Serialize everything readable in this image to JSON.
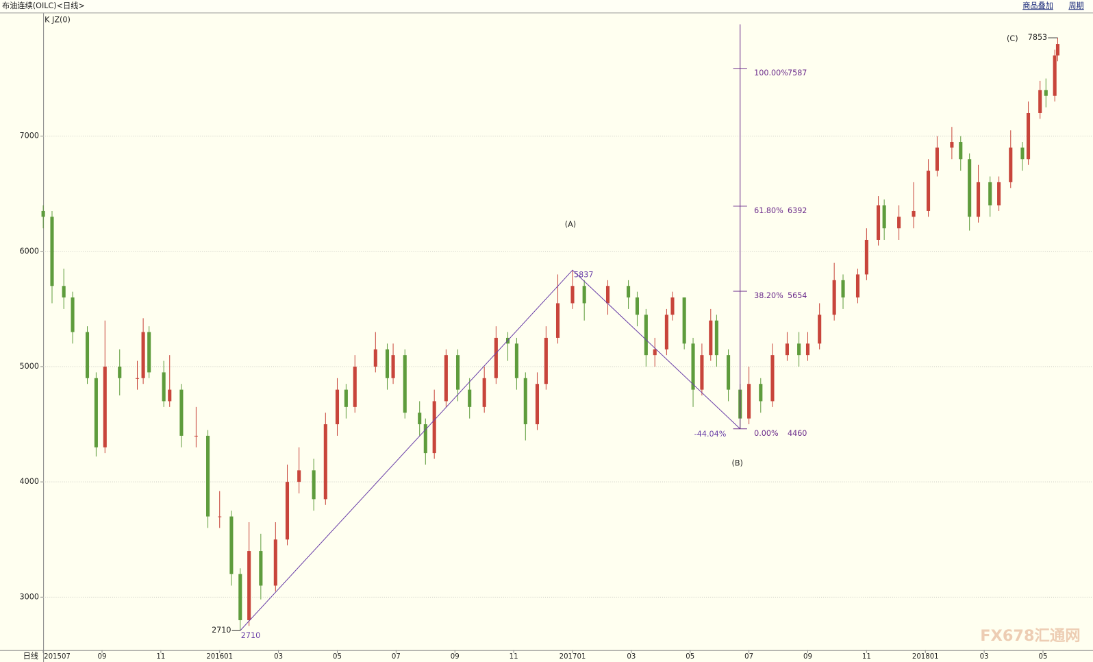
{
  "header": {
    "title": "布油连续(OILC)<日线>",
    "links": [
      "商品叠加",
      "周期"
    ],
    "indicator": "K JZ(0)",
    "period": "日线",
    "watermark": "FX678汇通网"
  },
  "chart_data": {
    "type": "candlestick",
    "up_color": "#c8453b",
    "down_color": "#5e9c3c",
    "grid": true,
    "xlim": [
      0,
      35.7
    ],
    "ylim": [
      2540,
      8060
    ],
    "yticks": [
      3000,
      4000,
      5000,
      6000,
      7000
    ],
    "xticks": [
      {
        "value": 0,
        "label": "201507"
      },
      {
        "value": 2,
        "label": "09"
      },
      {
        "value": 4,
        "label": "11"
      },
      {
        "value": 6,
        "label": "201601"
      },
      {
        "value": 8,
        "label": "03"
      },
      {
        "value": 10,
        "label": "05"
      },
      {
        "value": 12,
        "label": "07"
      },
      {
        "value": 14,
        "label": "09"
      },
      {
        "value": 16,
        "label": "11"
      },
      {
        "value": 18,
        "label": "201701"
      },
      {
        "value": 20,
        "label": "03"
      },
      {
        "value": 22,
        "label": "05"
      },
      {
        "value": 24,
        "label": "07"
      },
      {
        "value": 26,
        "label": "09"
      },
      {
        "value": 28,
        "label": "11"
      },
      {
        "value": 30,
        "label": "201801"
      },
      {
        "value": 32,
        "label": "03"
      },
      {
        "value": 34,
        "label": "05"
      }
    ],
    "x": [
      0.0,
      0.3,
      0.7,
      1.0,
      1.5,
      1.8,
      2.1,
      2.6,
      3.2,
      3.4,
      3.6,
      4.1,
      4.3,
      4.7,
      5.2,
      5.6,
      6.0,
      6.4,
      6.7,
      7.0,
      7.4,
      7.9,
      8.3,
      8.7,
      9.2,
      9.6,
      10.0,
      10.3,
      10.6,
      11.3,
      11.7,
      11.9,
      12.3,
      12.8,
      13.0,
      13.3,
      13.7,
      14.1,
      14.5,
      15.0,
      15.4,
      15.8,
      16.1,
      16.4,
      16.8,
      17.1,
      17.5,
      18.0,
      18.4,
      19.2,
      19.9,
      20.2,
      20.5,
      20.8,
      21.2,
      21.4,
      21.8,
      22.1,
      22.4,
      22.7,
      22.9,
      23.3,
      23.7,
      24.0,
      24.4,
      24.8,
      25.3,
      25.7,
      26.0,
      26.4,
      26.9,
      27.2,
      27.7,
      28.0,
      28.4,
      28.6,
      29.1,
      29.6,
      30.1,
      30.4,
      30.9,
      31.2,
      31.5,
      31.8,
      32.2,
      32.5,
      32.9,
      33.3,
      33.5,
      33.9,
      34.1,
      34.4,
      34.5
    ],
    "open": [
      6350,
      6300,
      5700,
      5600,
      5300,
      4900,
      4300,
      5000,
      4900,
      4900,
      5300,
      4950,
      4700,
      4800,
      4400,
      4400,
      3700,
      3700,
      3200,
      2800,
      3400,
      3100,
      3500,
      4000,
      4100,
      3850,
      4500,
      4800,
      4650,
      5000,
      5150,
      4900,
      5100,
      4600,
      4500,
      4250,
      4700,
      5100,
      4800,
      4650,
      4900,
      5250,
      5200,
      4900,
      4500,
      4850,
      5250,
      5550,
      5700,
      5550,
      5700,
      5600,
      5450,
      5100,
      5150,
      5450,
      5600,
      5200,
      4800,
      5100,
      5400,
      5100,
      4800,
      4550,
      4850,
      4700,
      5100,
      5200,
      5100,
      5200,
      5450,
      5750,
      5600,
      5800,
      6100,
      6400,
      6200,
      6300,
      6350,
      6700,
      6900,
      6950,
      6800,
      6300,
      6600,
      6400,
      6600,
      6900,
      6800,
      7200,
      7400,
      7350,
      7700
    ],
    "high": [
      6400,
      6350,
      5850,
      5650,
      5350,
      4950,
      5400,
      5150,
      5050,
      5420,
      5350,
      5050,
      5100,
      4850,
      4650,
      4450,
      3920,
      3750,
      3250,
      3650,
      3550,
      3650,
      4150,
      4300,
      4200,
      4600,
      4900,
      4850,
      5100,
      5300,
      5200,
      5200,
      5150,
      4700,
      4550,
      4800,
      5150,
      5150,
      4900,
      5000,
      5350,
      5300,
      5250,
      4950,
      4950,
      5350,
      5800,
      5837,
      5750,
      5750,
      5750,
      5650,
      5500,
      5250,
      5500,
      5650,
      5600,
      5250,
      5200,
      5500,
      5450,
      5150,
      4850,
      5000,
      4900,
      5200,
      5300,
      5300,
      5300,
      5550,
      5900,
      5800,
      5850,
      6200,
      6480,
      6450,
      6400,
      6600,
      6800,
      7000,
      7080,
      7000,
      6850,
      6750,
      6650,
      6650,
      7050,
      6950,
      7300,
      7480,
      7500,
      7750,
      7853
    ],
    "low": [
      6200,
      5550,
      5500,
      5200,
      4850,
      4220,
      4250,
      4750,
      4800,
      4850,
      4900,
      4650,
      4650,
      4300,
      4300,
      3600,
      3600,
      3100,
      2710,
      2750,
      2980,
      3050,
      3450,
      3900,
      3750,
      3800,
      4400,
      4550,
      4600,
      4950,
      4800,
      4850,
      4550,
      4400,
      4150,
      4200,
      4650,
      4700,
      4550,
      4600,
      4850,
      5050,
      4800,
      4360,
      4450,
      4800,
      5200,
      5500,
      5400,
      5450,
      5500,
      5350,
      5000,
      5000,
      5100,
      5400,
      5150,
      4650,
      4750,
      5050,
      5000,
      4700,
      4460,
      4500,
      4600,
      4650,
      5050,
      5000,
      5050,
      5150,
      5400,
      5500,
      5550,
      5750,
      6050,
      6100,
      6100,
      6200,
      6300,
      6650,
      6800,
      6700,
      6180,
      6250,
      6300,
      6350,
      6550,
      6700,
      6750,
      7150,
      7250,
      7300,
      7650
    ],
    "close": [
      6300,
      5700,
      5600,
      5300,
      4900,
      4300,
      5000,
      4900,
      4900,
      5300,
      4950,
      4700,
      4800,
      4400,
      4400,
      3700,
      3700,
      3200,
      2800,
      3400,
      3100,
      3500,
      4000,
      4100,
      3850,
      4500,
      4800,
      4650,
      5000,
      5150,
      4900,
      5100,
      4600,
      4500,
      4250,
      4700,
      5100,
      4800,
      4650,
      4900,
      5250,
      5200,
      4900,
      4500,
      4850,
      5250,
      5550,
      5700,
      5550,
      5700,
      5600,
      5450,
      5100,
      5150,
      5450,
      5600,
      5200,
      4800,
      5100,
      5400,
      5100,
      4800,
      4550,
      4850,
      4700,
      5100,
      5200,
      5100,
      5200,
      5450,
      5750,
      5600,
      5800,
      6100,
      6400,
      6200,
      6300,
      6350,
      6700,
      6900,
      6950,
      6800,
      6300,
      6600,
      6400,
      6600,
      6900,
      6800,
      7200,
      7400,
      7350,
      7700,
      7800
    ],
    "waves": {
      "color": "#6a3fa8",
      "points": [
        {
          "x": 6.7,
          "value": 2710
        },
        {
          "x": 18.0,
          "value": 5837,
          "label": "(A)"
        },
        {
          "x": 23.7,
          "value": 4460,
          "label": "(B)"
        },
        {
          "x": 34.5,
          "value": 7853,
          "label": "(C)"
        }
      ],
      "retracement": "-44.04%"
    },
    "fibonacci": {
      "color": "#6b2b8b",
      "x": 23.7,
      "line_top": 7970,
      "levels": [
        {
          "pct": "100.00%",
          "value": 7587
        },
        {
          "pct": "61.80%",
          "value": 6392
        },
        {
          "pct": "38.20%",
          "value": 5654
        },
        {
          "pct": "0.00%",
          "value": 4460
        }
      ]
    }
  }
}
